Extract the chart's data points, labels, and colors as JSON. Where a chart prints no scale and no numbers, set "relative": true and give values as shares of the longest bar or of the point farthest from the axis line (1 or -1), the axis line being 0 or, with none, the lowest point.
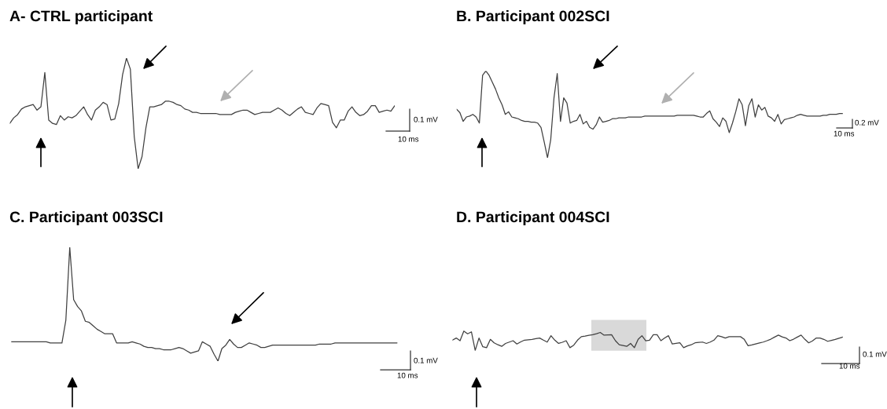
{
  "chart_data": [
    {
      "type": "line",
      "title": "A- CTRL participant",
      "relative": true,
      "color": "#404040",
      "annotations": [
        "0.1 mV",
        "10 ms"
      ],
      "categories": [
        null,
        null,
        null,
        null,
        null,
        null,
        null,
        null,
        null,
        null,
        null,
        null,
        null,
        null,
        null,
        null,
        null,
        null,
        null,
        null,
        null,
        null,
        null,
        null,
        null,
        null,
        null,
        null,
        null,
        null,
        null,
        null,
        null,
        null,
        null,
        null,
        null,
        null,
        null,
        null,
        null,
        null,
        null,
        null,
        null,
        null,
        null,
        null,
        null,
        null,
        null,
        null,
        null,
        null,
        null,
        null,
        null,
        null,
        null,
        null,
        null,
        null,
        null,
        null,
        null,
        null,
        null,
        null,
        null,
        null,
        null,
        null,
        null,
        null,
        null,
        null,
        null,
        null,
        null,
        null,
        null,
        null,
        null,
        null,
        null,
        null,
        null,
        null,
        null,
        null,
        null,
        null,
        null,
        null,
        null,
        null,
        null,
        null,
        null,
        null
      ],
      "values": [
        0.41,
        0.46,
        0.49,
        0.54,
        0.56,
        0.57,
        0.58,
        0.53,
        0.56,
        0.87,
        0.44,
        0.41,
        0.4,
        0.48,
        0.44,
        0.47,
        0.46,
        0.48,
        0.52,
        0.56,
        0.49,
        0.44,
        0.53,
        0.56,
        0.6,
        0.58,
        0.44,
        0.45,
        0.59,
        0.85,
        1,
        0.9,
        0.29,
        0,
        0.11,
        0.37,
        0.56,
        0.56,
        0.57,
        0.58,
        0.61,
        0.61,
        0.6,
        0.58,
        0.57,
        0.54,
        0.53,
        0.51,
        0.51,
        0.5,
        0.5,
        0.5,
        0.5,
        0.5,
        0.49,
        0.49,
        0.49,
        0.49,
        0.51,
        0.52,
        0.53,
        0.53,
        0.51,
        0.49,
        0.5,
        0.51,
        0.51,
        0.51,
        0.53,
        0.55,
        0.53,
        0.5,
        0.48,
        0.51,
        0.54,
        0.56,
        0.51,
        0.5,
        0.49,
        0.55,
        0.59,
        0.58,
        0.57,
        0.42,
        0.37,
        0.44,
        0.44,
        0.52,
        0.56,
        0.51,
        0.48,
        0.49,
        0.52,
        0.57,
        0.57,
        0.51,
        0.52,
        0.53,
        0.52,
        0.57
      ]
    },
    {
      "type": "line",
      "title": "B. Participant 002SCI",
      "relative": true,
      "color": "#404040",
      "annotations": [
        "0.2 mV",
        "10 ms"
      ],
      "categories": [
        null,
        null,
        null,
        null,
        null,
        null,
        null,
        null,
        null,
        null,
        null,
        null,
        null,
        null,
        null,
        null,
        null,
        null,
        null,
        null,
        null,
        null,
        null,
        null,
        null,
        null,
        null,
        null,
        null,
        null,
        null,
        null,
        null,
        null,
        null,
        null,
        null,
        null,
        null,
        null,
        null,
        null,
        null,
        null,
        null,
        null,
        null,
        null,
        null,
        null,
        null,
        null,
        null,
        null,
        null,
        null,
        null,
        null,
        null,
        null,
        null,
        null,
        null,
        null,
        null,
        null,
        null,
        null,
        null,
        null,
        null,
        null,
        null,
        null,
        null,
        null,
        null,
        null,
        null,
        null,
        null,
        null,
        null,
        null,
        null,
        null,
        null,
        null,
        null,
        null,
        null,
        null,
        null,
        null,
        null,
        null,
        null,
        null,
        null,
        null,
        null,
        null,
        null,
        null,
        null,
        null,
        null,
        null,
        null,
        null,
        null,
        null,
        null,
        null,
        null,
        null,
        null,
        null,
        null,
        null
      ],
      "values": [
        0.56,
        0.52,
        0.42,
        0.47,
        0.48,
        0.5,
        0.47,
        0.4,
        0.95,
        1,
        0.95,
        0.87,
        0.79,
        0.69,
        0.61,
        0.5,
        0.53,
        0.47,
        0.46,
        0.45,
        0.43,
        0.42,
        0.42,
        0.41,
        0.41,
        0.4,
        0.35,
        0.18,
        0,
        0.21,
        0.69,
        0.97,
        0.42,
        0.69,
        0.63,
        0.4,
        0.42,
        0.43,
        0.5,
        0.39,
        0.42,
        0.35,
        0.33,
        0.38,
        0.47,
        0.41,
        0.42,
        0.43,
        0.45,
        0.45,
        0.46,
        0.46,
        0.46,
        0.47,
        0.47,
        0.47,
        0.47,
        0.47,
        0.48,
        0.48,
        0.48,
        0.48,
        0.48,
        0.48,
        0.48,
        0.48,
        0.48,
        0.48,
        0.49,
        0.49,
        0.49,
        0.49,
        0.49,
        0.49,
        0.48,
        0.47,
        0.47,
        0.51,
        0.54,
        0.45,
        0.41,
        0.36,
        0.46,
        0.42,
        0.29,
        0.4,
        0.53,
        0.68,
        0.61,
        0.37,
        0.6,
        0.68,
        0.47,
        0.61,
        0.55,
        0.58,
        0.48,
        0.46,
        0.42,
        0.5,
        0.39,
        0.44,
        0.45,
        0.46,
        0.47,
        0.49,
        0.5,
        0.49,
        0.48,
        0.48,
        0.48,
        0.48,
        0.48,
        0.49,
        0.49,
        0.5,
        0.5,
        0.5,
        0.51,
        0.51
      ]
    },
    {
      "type": "line",
      "title": "C. Participant 003SCI",
      "relative": true,
      "color": "#404040",
      "annotations": [
        "0.1 mV",
        "10 ms"
      ],
      "categories": [
        null,
        null,
        null,
        null,
        null,
        null,
        null,
        null,
        null,
        null,
        null,
        null,
        null,
        null,
        null,
        null,
        null,
        null,
        null,
        null,
        null,
        null,
        null,
        null,
        null,
        null,
        null,
        null,
        null,
        null,
        null,
        null,
        null,
        null,
        null,
        null,
        null,
        null,
        null,
        null,
        null,
        null,
        null,
        null,
        null,
        null,
        null,
        null,
        null,
        null,
        null,
        null,
        null,
        null,
        null,
        null,
        null,
        null,
        null,
        null,
        null,
        null,
        null,
        null,
        null,
        null,
        null,
        null,
        null,
        null,
        null,
        null,
        null,
        null,
        null,
        null,
        null,
        null,
        null,
        null,
        null,
        null,
        null,
        null,
        null,
        null,
        null,
        null,
        null,
        null,
        null,
        null,
        null,
        null,
        null,
        null,
        null,
        null,
        null,
        null
      ],
      "values": [
        0.17,
        0.17,
        0.17,
        0.17,
        0.17,
        0.17,
        0.17,
        0.17,
        0.17,
        0.17,
        0.16,
        0.16,
        0.16,
        0.16,
        0.36,
        1,
        0.54,
        0.48,
        0.44,
        0.35,
        0.34,
        0.31,
        0.28,
        0.26,
        0.24,
        0.24,
        0.24,
        0.16,
        0.16,
        0.16,
        0.16,
        0.17,
        0.16,
        0.15,
        0.13,
        0.12,
        0.12,
        0.11,
        0.11,
        0.1,
        0.1,
        0.1,
        0.11,
        0.12,
        0.11,
        0.09,
        0.07,
        0.08,
        0.09,
        0.17,
        0.15,
        0.13,
        0.06,
        0,
        0.11,
        0.14,
        0.19,
        0.15,
        0.12,
        0.12,
        0.14,
        0.16,
        0.15,
        0.14,
        0.12,
        0.12,
        0.13,
        0.14,
        0.14,
        0.14,
        0.14,
        0.14,
        0.14,
        0.14,
        0.14,
        0.14,
        0.14,
        0.14,
        0.14,
        0.15,
        0.15,
        0.15,
        0.15,
        0.16,
        0.16,
        0.16,
        0.16,
        0.16,
        0.16,
        0.16,
        0.16,
        0.16,
        0.16,
        0.16,
        0.16,
        0.16,
        0.16,
        0.16,
        0.16,
        0.16
      ]
    },
    {
      "type": "line",
      "title": "D. Participant 004SCI",
      "relative": true,
      "color": "#404040",
      "annotations": [
        "0.1 mV",
        "10 ms"
      ],
      "categories": [
        null,
        null,
        null,
        null,
        null,
        null,
        null,
        null,
        null,
        null,
        null,
        null,
        null,
        null,
        null,
        null,
        null,
        null,
        null,
        null,
        null,
        null,
        null,
        null,
        null,
        null,
        null,
        null,
        null,
        null,
        null,
        null,
        null,
        null,
        null,
        null,
        null,
        null,
        null,
        null,
        null,
        null,
        null,
        null,
        null,
        null,
        null,
        null,
        null,
        null,
        null,
        null,
        null,
        null,
        null,
        null,
        null,
        null,
        null,
        null,
        null,
        null,
        null,
        null,
        null,
        null,
        null,
        null,
        null,
        null,
        null,
        null,
        null,
        null,
        null,
        null,
        null,
        null,
        null,
        null,
        null,
        null,
        null,
        null,
        null,
        null,
        null,
        null,
        null,
        null,
        null,
        null,
        null,
        null,
        null,
        null,
        null,
        null,
        null,
        null,
        null,
        null,
        null,
        null
      ],
      "values": [
        0.53,
        0.64,
        0.5,
        1,
        0.86,
        0.96,
        0,
        0.64,
        0.19,
        0.14,
        0.57,
        0.39,
        0.29,
        0.21,
        0.36,
        0.43,
        0.5,
        0.33,
        0.44,
        0.53,
        0.55,
        0.57,
        0.61,
        0.64,
        0.53,
        0.43,
        0.76,
        0.53,
        0.36,
        0.42,
        0.5,
        0.14,
        0.27,
        0.53,
        0.71,
        0.74,
        0.78,
        0.81,
        0.86,
        0.93,
        0.79,
        0.8,
        0.81,
        0.5,
        0.29,
        0.25,
        0.21,
        0.36,
        0.14,
        0.57,
        0.76,
        0.5,
        0.53,
        0.81,
        0.81,
        0.5,
        0.64,
        0.76,
        0.33,
        0.36,
        0.39,
        0.14,
        0.23,
        0.29,
        0.39,
        0.41,
        0.43,
        0.36,
        0.43,
        0.53,
        0.76,
        0.71,
        0.64,
        0.71,
        0.71,
        0.71,
        0.71,
        0.57,
        0.24,
        0.28,
        0.33,
        0.38,
        0.43,
        0.5,
        0.58,
        0.69,
        0.79,
        0.7,
        0.64,
        0.5,
        0.58,
        0.69,
        0.79,
        0.57,
        0.39,
        0.49,
        0.64,
        0.64,
        0.57,
        0.47,
        0.52,
        0.57,
        0.63,
        0.69
      ]
    }
  ]
}
